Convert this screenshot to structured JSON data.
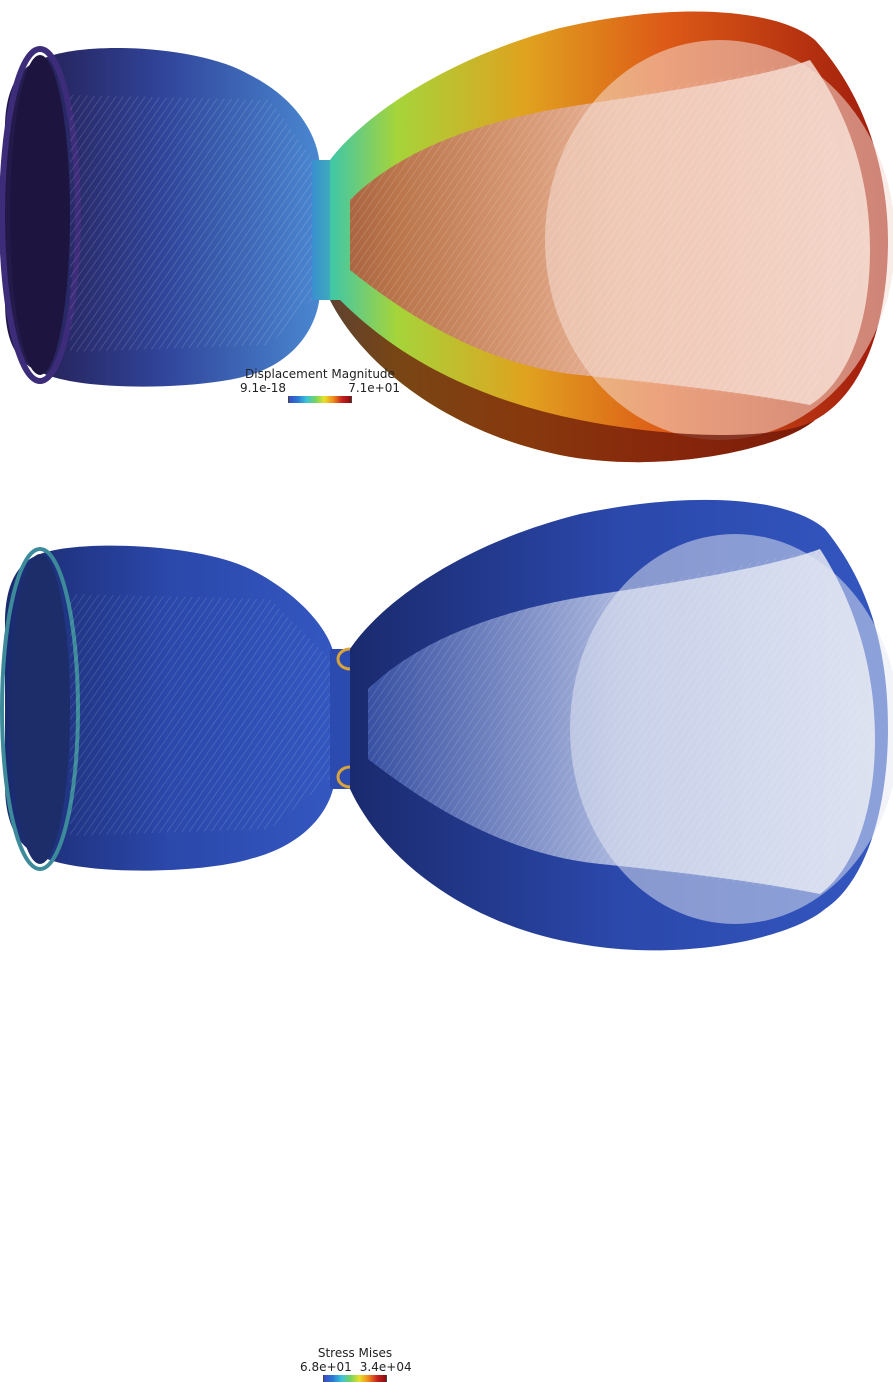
{
  "top_view": {
    "field": "displacement",
    "colors": {
      "chamber_dark": "#2a1d55",
      "chamber_mid": "#3d63b5",
      "throat": "#3fc7a8",
      "nozzle_yellow": "#c6d52a",
      "nozzle_orange": "#e0611b",
      "nozzle_red": "#9e1a0c",
      "nozzle_inner_light": "#f3d2c6"
    },
    "legend": {
      "title": "Displacement Magnitude",
      "min": "9.1e-18",
      "max": "7.1e+01"
    }
  },
  "bottom_view": {
    "field": "stress",
    "colors": {
      "body_dark": "#1b2f78",
      "body_mid": "#2f4fb5",
      "throat_hot": "#d8a33a",
      "nozzle_inner_light": "#dfe3f0"
    },
    "legend": {
      "title": "Stress Mises",
      "min": "6.8e+01",
      "max": "3.4e+04"
    }
  }
}
